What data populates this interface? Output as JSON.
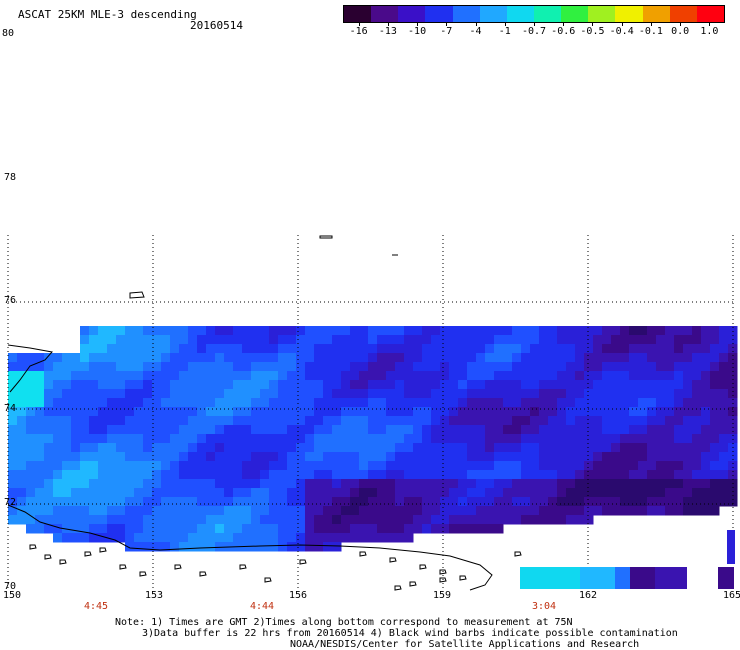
{
  "header": {
    "title": "ASCAT 25KM MLE-3 descending",
    "date": "20160514"
  },
  "colorbar": {
    "labels": [
      "-16",
      "-13",
      "-10",
      "-7",
      "-4",
      "-1",
      "-0.7",
      "-0.6",
      "-0.5",
      "-0.4",
      "-0.1",
      "0.0",
      "1.0"
    ],
    "colors": [
      "#2a0030",
      "#4a0a8a",
      "#3a10c8",
      "#2030f0",
      "#2070ff",
      "#20a8ff",
      "#10d8f0",
      "#10f0b0",
      "#30f040",
      "#a0f020",
      "#f0f000",
      "#f0a000",
      "#f04000",
      "#ff0010"
    ]
  },
  "axes": {
    "lat_labels": [
      "80",
      "78",
      "76",
      "74",
      "72",
      "70"
    ],
    "lon_labels": [
      "150",
      "153",
      "156",
      "159",
      "162",
      "165"
    ]
  },
  "time_labels": [
    "4:45",
    "4:44",
    "3:04"
  ],
  "notes": {
    "line1": "Note: 1) Times are GMT 2)Times along bottom correspond to measurement at 75N",
    "line2": "3)Data buffer is 22 hrs from 20160514 4) Black wind barbs indicate possible contamination",
    "line3": "NOAA/NESDIS/Center for Satellite Applications and Research"
  }
}
